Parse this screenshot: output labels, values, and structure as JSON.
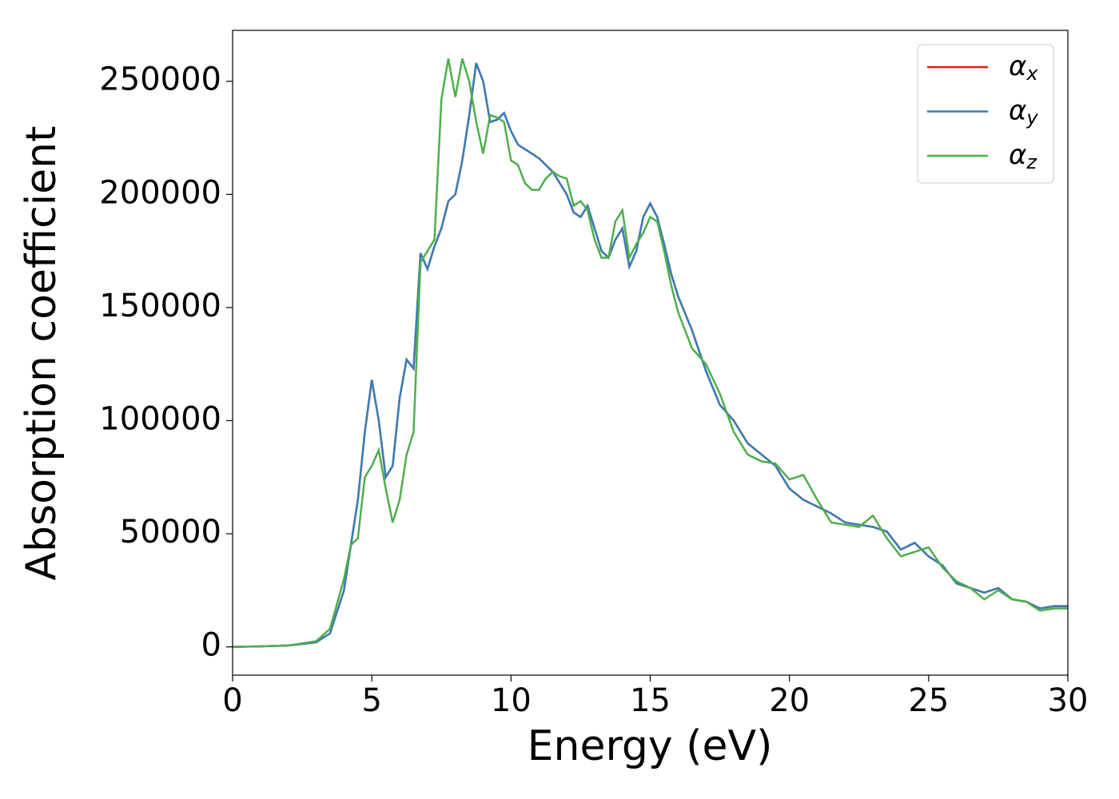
{
  "chart_data": {
    "type": "line",
    "xlabel": "Energy (eV)",
    "ylabel": "Absorption coefficient",
    "x": [
      0,
      1,
      2,
      3,
      3.5,
      4,
      4.25,
      4.5,
      4.75,
      5,
      5.25,
      5.5,
      5.75,
      6,
      6.25,
      6.5,
      6.75,
      7,
      7.25,
      7.5,
      7.75,
      8,
      8.25,
      8.5,
      8.75,
      9,
      9.25,
      9.5,
      9.75,
      10,
      10.25,
      10.5,
      10.75,
      11,
      11.25,
      11.5,
      11.75,
      12,
      12.25,
      12.5,
      12.75,
      13,
      13.25,
      13.5,
      13.75,
      14,
      14.25,
      14.5,
      14.75,
      15,
      15.25,
      15.5,
      15.75,
      16,
      16.5,
      17,
      17.5,
      18,
      18.5,
      19,
      19.5,
      20,
      20.5,
      21,
      21.5,
      22,
      22.5,
      23,
      23.5,
      24,
      24.5,
      25,
      25.5,
      26,
      26.5,
      27,
      27.5,
      28,
      28.5,
      29,
      29.5,
      30
    ],
    "series": [
      {
        "name": "αx",
        "color": "#e41a1c",
        "values": [
          0,
          200,
          600,
          2000,
          6000,
          25000,
          45000,
          65000,
          95000,
          118000,
          100000,
          75000,
          80000,
          110000,
          127000,
          123000,
          174000,
          167000,
          177000,
          185000,
          197000,
          200000,
          215000,
          235000,
          258000,
          250000,
          232000,
          233000,
          236000,
          228000,
          222000,
          220000,
          218000,
          216000,
          213000,
          210000,
          205000,
          200000,
          192000,
          190000,
          195000,
          185000,
          175000,
          172000,
          180000,
          185000,
          168000,
          175000,
          190000,
          196000,
          190000,
          178000,
          165000,
          155000,
          140000,
          122000,
          107000,
          100000,
          90000,
          85000,
          80000,
          70000,
          65000,
          62000,
          59000,
          55000,
          54000,
          53000,
          51000,
          43000,
          46000,
          40000,
          36000,
          28000,
          26000,
          24000,
          26000,
          21000,
          20000,
          17000,
          18000,
          18000
        ]
      },
      {
        "name": "αy",
        "color": "#377eb8",
        "values": [
          0,
          200,
          600,
          2000,
          6000,
          25000,
          45000,
          65000,
          95000,
          118000,
          100000,
          75000,
          80000,
          110000,
          127000,
          123000,
          174000,
          167000,
          177000,
          185000,
          197000,
          200000,
          215000,
          235000,
          258000,
          250000,
          232000,
          233000,
          236000,
          228000,
          222000,
          220000,
          218000,
          216000,
          213000,
          210000,
          205000,
          200000,
          192000,
          190000,
          195000,
          185000,
          175000,
          172000,
          180000,
          185000,
          168000,
          175000,
          190000,
          196000,
          190000,
          178000,
          165000,
          155000,
          140000,
          122000,
          107000,
          100000,
          90000,
          85000,
          80000,
          70000,
          65000,
          62000,
          59000,
          55000,
          54000,
          53000,
          51000,
          43000,
          46000,
          40000,
          36000,
          28000,
          26000,
          24000,
          26000,
          21000,
          20000,
          17000,
          18000,
          18000
        ]
      },
      {
        "name": "αz",
        "color": "#4daf4a",
        "values": [
          0,
          200,
          600,
          2500,
          8000,
          30000,
          45000,
          48000,
          75000,
          80000,
          87000,
          70000,
          55000,
          65000,
          85000,
          95000,
          170000,
          175000,
          180000,
          242000,
          260000,
          243000,
          260000,
          250000,
          232000,
          218000,
          235000,
          234000,
          232000,
          215000,
          213000,
          205000,
          202000,
          202000,
          207000,
          210000,
          208000,
          207000,
          195000,
          197000,
          193000,
          180000,
          172000,
          172000,
          188000,
          193000,
          172000,
          178000,
          183000,
          190000,
          188000,
          175000,
          160000,
          148000,
          132000,
          125000,
          112000,
          95000,
          85000,
          82000,
          81000,
          74000,
          76000,
          65000,
          55000,
          54000,
          53000,
          58000,
          48000,
          40000,
          42000,
          44000,
          35000,
          29000,
          26000,
          21000,
          25000,
          21000,
          20000,
          16000,
          17000,
          17000
        ]
      }
    ],
    "xlim": [
      0,
      30
    ],
    "xticks": [
      0,
      5,
      10,
      15,
      20,
      25,
      30
    ],
    "ylim": [
      -12500,
      272500
    ],
    "yticks": [
      0,
      50000,
      100000,
      150000,
      200000,
      250000
    ],
    "legend": "upper right"
  }
}
